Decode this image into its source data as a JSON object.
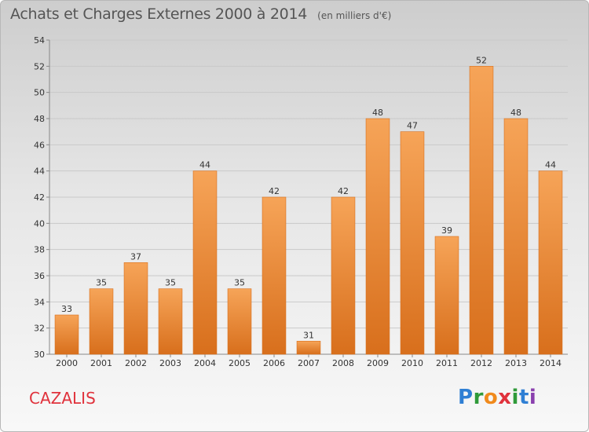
{
  "header": {
    "title": "Achats et Charges Externes 2000 à 2014",
    "unit": "(en milliers d'€)"
  },
  "footer": {
    "commune": "CAZALIS",
    "logo_letters": [
      "P",
      "r",
      "o",
      "x",
      "i",
      "t",
      "i"
    ],
    "logo_colors": [
      "#2f7fd4",
      "#2f9a3a",
      "#f08a1c",
      "#e0323c",
      "#2f9a3a",
      "#2f7fd4",
      "#8a3fae"
    ]
  },
  "colors": {
    "bar": "#f0923a",
    "bar_light": "#f6a458",
    "bar_dark": "#d86f1c",
    "commune": "#e0323c"
  },
  "chart_data": {
    "type": "bar",
    "categories": [
      "2000",
      "2001",
      "2002",
      "2003",
      "2004",
      "2005",
      "2006",
      "2007",
      "2008",
      "2009",
      "2010",
      "2011",
      "2012",
      "2013",
      "2014"
    ],
    "values": [
      33,
      35,
      37,
      35,
      44,
      35,
      42,
      31,
      42,
      48,
      47,
      39,
      52,
      48,
      44
    ],
    "ylim": [
      30,
      54
    ],
    "yticks": [
      30,
      32,
      34,
      36,
      38,
      40,
      42,
      44,
      46,
      48,
      50,
      52,
      54
    ],
    "grid": true,
    "legend": "none"
  }
}
